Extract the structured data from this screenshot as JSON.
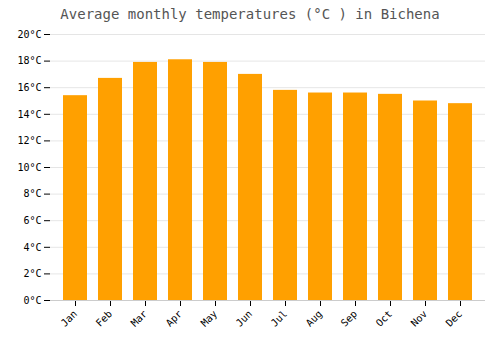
{
  "chart_data": {
    "type": "bar",
    "title": "Average monthly temperatures (°C ) in Bichena",
    "categories": [
      "Jan",
      "Feb",
      "Mar",
      "Apr",
      "May",
      "Jun",
      "Jul",
      "Aug",
      "Sep",
      "Oct",
      "Nov",
      "Dec"
    ],
    "values": [
      15.4,
      16.7,
      17.9,
      18.1,
      17.9,
      17.0,
      15.8,
      15.6,
      15.6,
      15.5,
      15.0,
      14.8
    ],
    "color": "#FFA000",
    "ylim": [
      0,
      20
    ],
    "yticks": [
      {
        "value": 0,
        "label": "0°C"
      },
      {
        "value": 2,
        "label": "2°C"
      },
      {
        "value": 4,
        "label": "4°C"
      },
      {
        "value": 6,
        "label": "6°C"
      },
      {
        "value": 8,
        "label": "8°C"
      },
      {
        "value": 10,
        "label": "10°C"
      },
      {
        "value": 12,
        "label": "12°C"
      },
      {
        "value": 14,
        "label": "14°C"
      },
      {
        "value": 16,
        "label": "16°C"
      },
      {
        "value": 18,
        "label": "18°C"
      },
      {
        "value": 20,
        "label": "20°C"
      }
    ],
    "grid": true
  }
}
